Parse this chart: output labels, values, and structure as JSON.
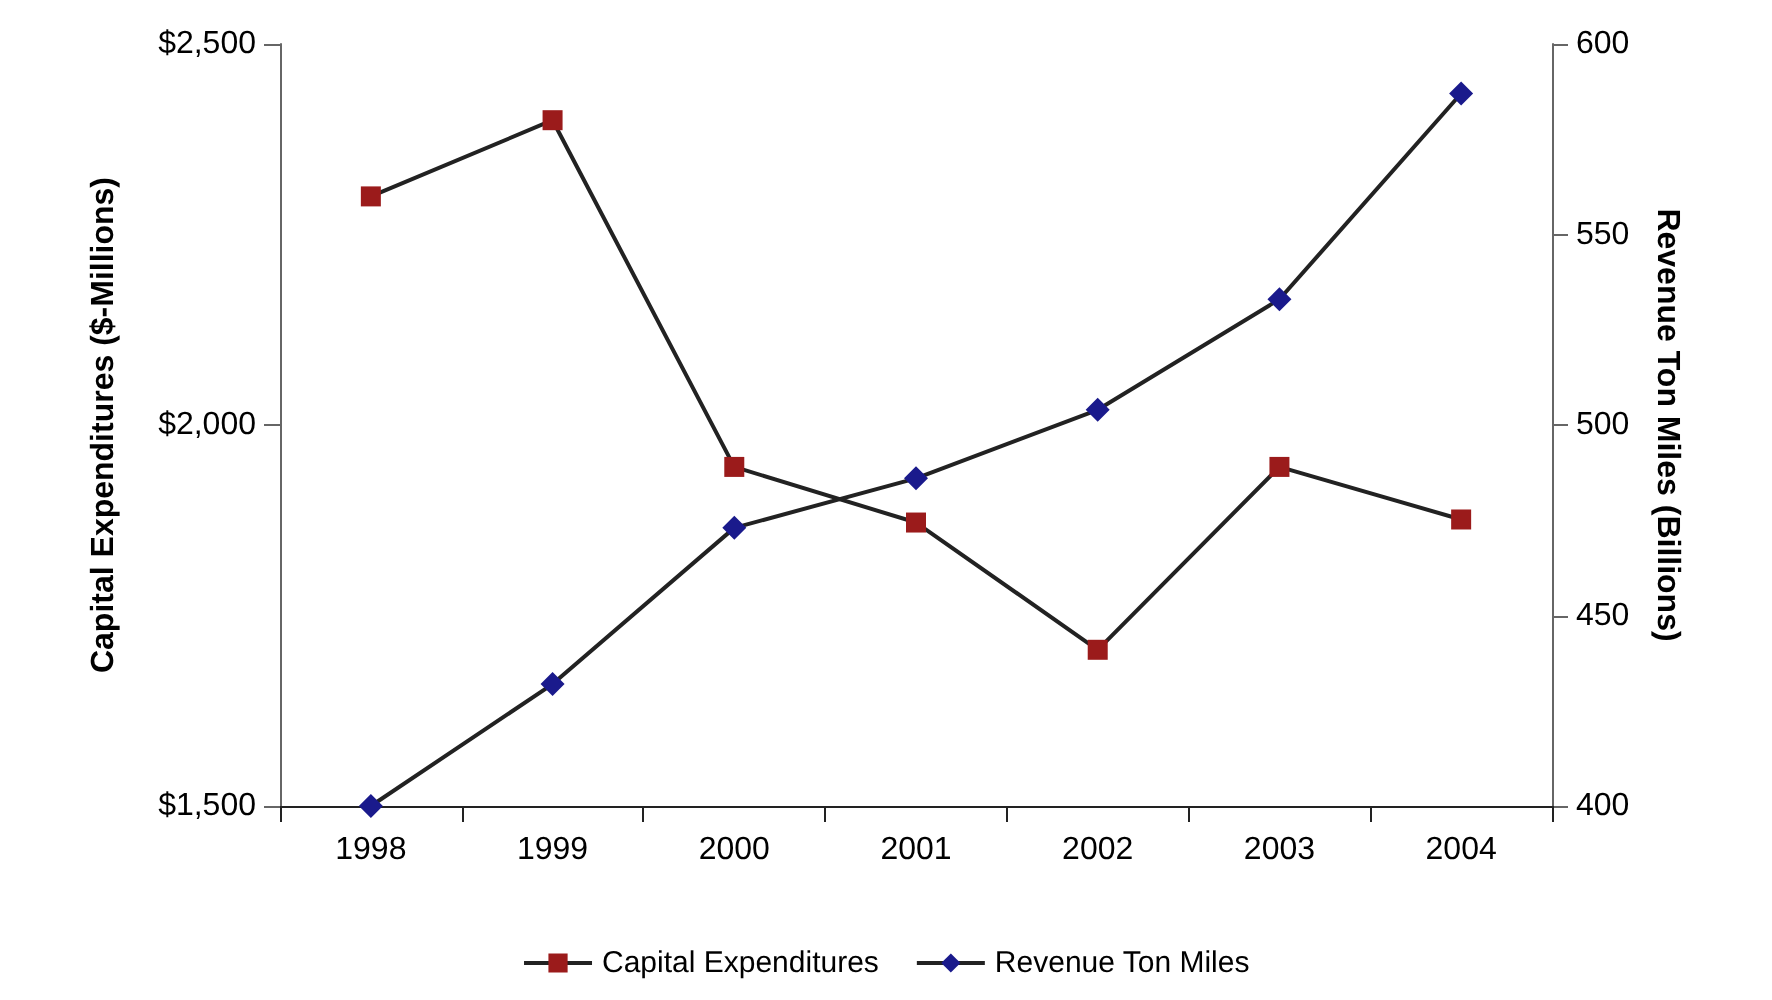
{
  "chart_data": {
    "type": "line",
    "categories": [
      "1998",
      "1999",
      "2000",
      "2001",
      "2002",
      "2003",
      "2004"
    ],
    "ylabel": "Capital Expenditures ($-Millions)",
    "y2label": "Revenue Ton Miles (Billions)",
    "ylim": [
      1500,
      2500
    ],
    "yticks": [
      {
        "value": 1500,
        "label": "$1,500"
      },
      {
        "value": 2000,
        "label": "$2,000"
      },
      {
        "value": 2500,
        "label": "$2,500"
      }
    ],
    "y2lim": [
      400,
      600
    ],
    "y2ticks": [
      400,
      450,
      500,
      550,
      600
    ],
    "series": [
      {
        "name": "Capital Expenditures",
        "color": "#9b1b1b",
        "marker": "square",
        "values": [
          2300,
          2400,
          1945,
          1872,
          1705,
          1945,
          1876
        ]
      },
      {
        "name": "Revenue Ton Miles",
        "color": "#1a1a8c",
        "marker": "diamond",
        "axis": "y2",
        "values": [
          400,
          432,
          473,
          486,
          504,
          533,
          587
        ]
      }
    ],
    "legend": "bottom",
    "grid": false
  }
}
